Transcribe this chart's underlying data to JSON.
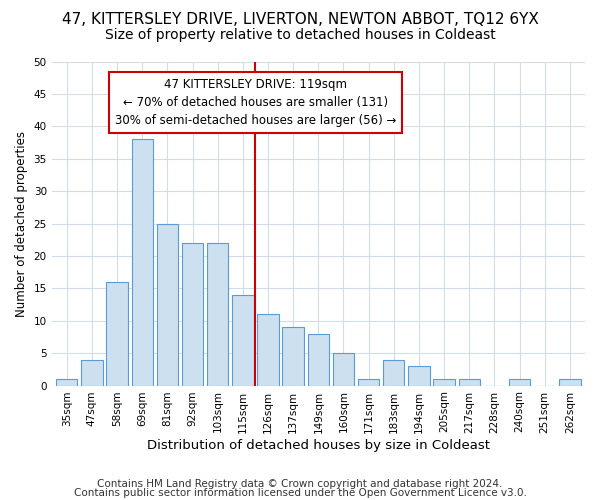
{
  "title1": "47, KITTERSLEY DRIVE, LIVERTON, NEWTON ABBOT, TQ12 6YX",
  "title2": "Size of property relative to detached houses in Coldeast",
  "xlabel": "Distribution of detached houses by size in Coldeast",
  "ylabel": "Number of detached properties",
  "categories": [
    "35sqm",
    "47sqm",
    "58sqm",
    "69sqm",
    "81sqm",
    "92sqm",
    "103sqm",
    "115sqm",
    "126sqm",
    "137sqm",
    "149sqm",
    "160sqm",
    "171sqm",
    "183sqm",
    "194sqm",
    "205sqm",
    "217sqm",
    "228sqm",
    "240sqm",
    "251sqm",
    "262sqm"
  ],
  "values": [
    1,
    4,
    16,
    38,
    25,
    22,
    22,
    14,
    11,
    9,
    8,
    5,
    1,
    4,
    3,
    1,
    1,
    0,
    1,
    0,
    1
  ],
  "bar_color": "#cce0f0",
  "bar_edge_color": "#5b9bd5",
  "vline_color": "#cc0000",
  "annotation_line1": "47 KITTERSLEY DRIVE: 119sqm",
  "annotation_line2": "← 70% of detached houses are smaller (131)",
  "annotation_line3": "30% of semi-detached houses are larger (56) →",
  "annotation_box_color": "#ffffff",
  "annotation_box_edge": "#cc0000",
  "ylim": [
    0,
    50
  ],
  "yticks": [
    0,
    5,
    10,
    15,
    20,
    25,
    30,
    35,
    40,
    45,
    50
  ],
  "footer1": "Contains HM Land Registry data © Crown copyright and database right 2024.",
  "footer2": "Contains public sector information licensed under the Open Government Licence v3.0.",
  "bg_color": "#ffffff",
  "plot_bg_color": "#ffffff",
  "grid_color": "#d0dce8",
  "title1_fontsize": 11,
  "title2_fontsize": 10,
  "xlabel_fontsize": 9.5,
  "ylabel_fontsize": 8.5,
  "tick_fontsize": 7.5,
  "annotation_fontsize": 8.5,
  "footer_fontsize": 7.5,
  "vline_x_index": 7.5
}
